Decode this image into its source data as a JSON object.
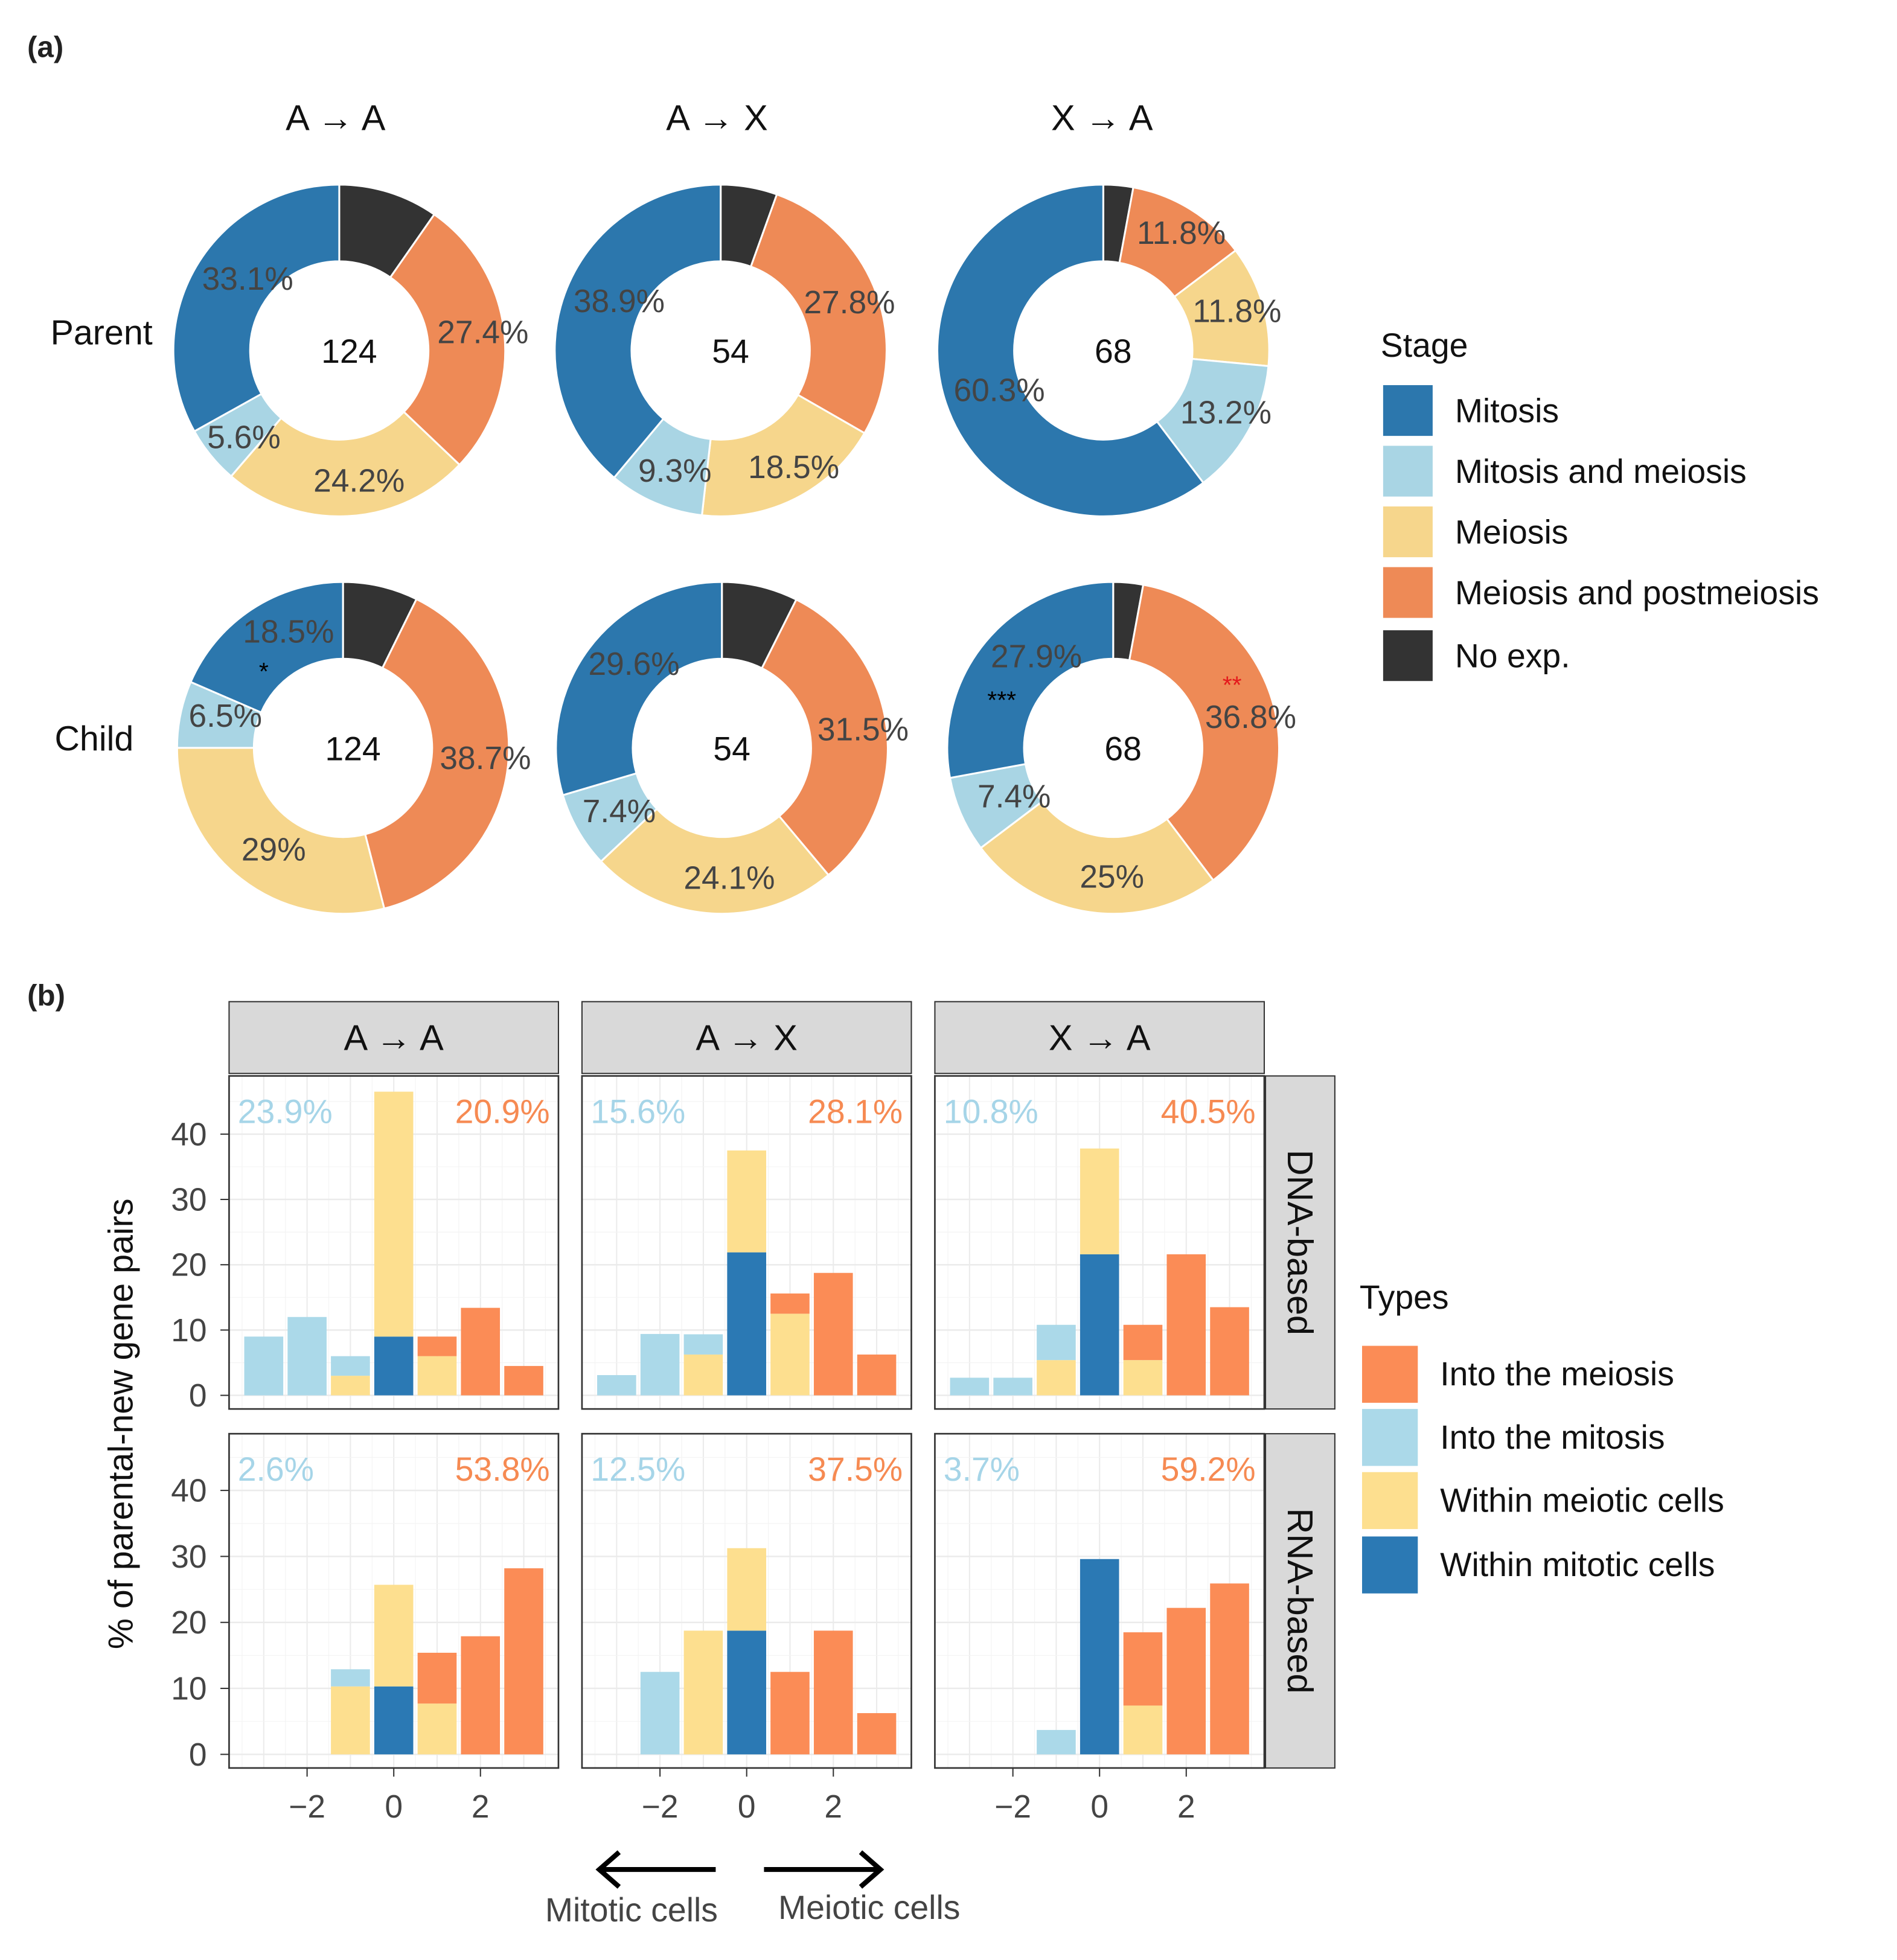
{
  "panel_labels": {
    "a": "(a)",
    "b": "(b)"
  },
  "chart_data": [
    {
      "type": "pie",
      "variant": "donut",
      "columns": [
        "A → A",
        "A → X",
        "X → A"
      ],
      "rows": [
        "Parent",
        "Child"
      ],
      "categories": [
        "No exp.",
        "Meiosis and postmeiosis",
        "Meiosis",
        "Mitosis and meiosis",
        "Mitosis"
      ],
      "colors": {
        "Mitosis": "#2c77ad",
        "Mitosis and meiosis": "#a9d5e4",
        "Meiosis": "#f6d68c",
        "Meiosis and postmeiosis": "#ee8a56",
        "No exp.": "#333333"
      },
      "donuts": [
        {
          "row": "Parent",
          "column": "A → A",
          "total": "124",
          "values": [
            9.7,
            27.4,
            24.2,
            5.6,
            33.1
          ],
          "labels": [
            "",
            "27.4%",
            "24.2%",
            "5.6%",
            "33.1%"
          ],
          "stars": []
        },
        {
          "row": "Parent",
          "column": "A → X",
          "total": "54",
          "values": [
            5.5,
            27.8,
            18.5,
            9.3,
            38.9
          ],
          "labels": [
            "",
            "27.8%",
            "18.5%",
            "9.3%",
            "38.9%"
          ],
          "stars": []
        },
        {
          "row": "Parent",
          "column": "X → A",
          "total": "68",
          "values": [
            2.9,
            11.8,
            11.8,
            13.2,
            60.3
          ],
          "labels": [
            "",
            "11.8%",
            "11.8%",
            "13.2%",
            "60.3%"
          ],
          "stars": []
        },
        {
          "row": "Child",
          "column": "A → A",
          "total": "124",
          "values": [
            7.3,
            38.7,
            29,
            6.5,
            18.5
          ],
          "labels": [
            "",
            "38.7%",
            "29%",
            "6.5%",
            "18.5%"
          ],
          "stars": [
            {
              "category": "Mitosis",
              "text": "*",
              "color": "#000000"
            }
          ]
        },
        {
          "row": "Child",
          "column": "A → X",
          "total": "54",
          "values": [
            7.4,
            31.5,
            24.1,
            7.4,
            29.6
          ],
          "labels": [
            "",
            "31.5%",
            "24.1%",
            "7.4%",
            "29.6%"
          ],
          "stars": []
        },
        {
          "row": "Child",
          "column": "X → A",
          "total": "68",
          "values": [
            2.9,
            36.8,
            25,
            7.4,
            27.9
          ],
          "labels": [
            "",
            "36.8%",
            "25%",
            "7.4%",
            "27.9%"
          ],
          "stars": [
            {
              "category": "Mitosis",
              "text": "***",
              "color": "#000000"
            },
            {
              "category": "Meiosis and postmeiosis",
              "text": "**",
              "color": "#e41a1c"
            }
          ]
        }
      ],
      "legend": {
        "title": "Stage",
        "items": [
          "Mitosis",
          "Mitosis and meiosis",
          "Meiosis",
          "Meiosis and postmeiosis",
          "No exp."
        ],
        "position": "right"
      }
    },
    {
      "type": "bar",
      "stacked": true,
      "facet_columns": [
        "A → A",
        "A → X",
        "X → A"
      ],
      "facet_rows": [
        "DNA-based",
        "RNA-based"
      ],
      "x": [
        -3,
        -2,
        -1,
        0,
        1,
        2,
        3
      ],
      "xticks": [
        "−2",
        "0",
        "2"
      ],
      "xtick_values": [
        -2,
        0,
        2
      ],
      "ylabel": "% of parental-new gene pairs",
      "ylim": [
        0,
        48
      ],
      "yticks": [
        "0",
        "10",
        "20",
        "30",
        "40"
      ],
      "grid": true,
      "series_names": [
        "Within mitotic cells",
        "Within meiotic cells",
        "Into the mitosis",
        "Into the meiosis"
      ],
      "colors": {
        "Into the meiosis": "#fb8c56",
        "Into the mitosis": "#abd9e9",
        "Within meiotic cells": "#fddf8f",
        "Within mitotic cells": "#2b79b4"
      },
      "annotation_colors": {
        "left": "#a6d5e8",
        "right": "#f68a52"
      },
      "panels": [
        {
          "row": "DNA-based",
          "column": "A → A",
          "left_pct": "23.9%",
          "right_pct": "20.9%",
          "series": {
            "Within mitotic cells": [
              0,
              0,
              0,
              9,
              0,
              0,
              0
            ],
            "Within meiotic cells": [
              0,
              0,
              3,
              37.5,
              6,
              0,
              0
            ],
            "Into the mitosis": [
              9,
              12,
              3,
              0,
              0,
              0,
              0
            ],
            "Into the meiosis": [
              0,
              0,
              0,
              0,
              3,
              13.4,
              4.5
            ]
          }
        },
        {
          "row": "DNA-based",
          "column": "A → X",
          "left_pct": "15.6%",
          "right_pct": "28.1%",
          "series": {
            "Within mitotic cells": [
              0,
              0,
              0,
              21.9,
              0,
              0,
              0
            ],
            "Within meiotic cells": [
              0,
              0,
              6.25,
              15.6,
              12.5,
              0,
              0
            ],
            "Into the mitosis": [
              3.1,
              9.4,
              3.1,
              0,
              0,
              0,
              0
            ],
            "Into the meiosis": [
              0,
              0,
              0,
              0,
              3.1,
              18.75,
              6.25
            ]
          }
        },
        {
          "row": "DNA-based",
          "column": "X → A",
          "left_pct": "10.8%",
          "right_pct": "40.5%",
          "series": {
            "Within mitotic cells": [
              0,
              0,
              0,
              21.6,
              0,
              0,
              0
            ],
            "Within meiotic cells": [
              0,
              0,
              5.4,
              16.2,
              5.4,
              0,
              0
            ],
            "Into the mitosis": [
              2.7,
              2.7,
              5.4,
              0,
              0,
              0,
              0
            ],
            "Into the meiosis": [
              0,
              0,
              0,
              0,
              5.4,
              21.6,
              13.5
            ]
          }
        },
        {
          "row": "RNA-based",
          "column": "A → A",
          "left_pct": "2.6%",
          "right_pct": "53.8%",
          "series": {
            "Within mitotic cells": [
              0,
              0,
              0,
              10.3,
              0,
              0,
              0
            ],
            "Within meiotic cells": [
              0,
              0,
              10.3,
              15.4,
              7.7,
              0,
              0
            ],
            "Into the mitosis": [
              0,
              0,
              2.6,
              0,
              0,
              0,
              0
            ],
            "Into the meiosis": [
              0,
              0,
              0,
              0,
              7.7,
              17.9,
              28.2
            ]
          }
        },
        {
          "row": "RNA-based",
          "column": "A → X",
          "left_pct": "12.5%",
          "right_pct": "37.5%",
          "series": {
            "Within mitotic cells": [
              0,
              0,
              0,
              18.75,
              0,
              0,
              0
            ],
            "Within meiotic cells": [
              0,
              0,
              18.75,
              12.5,
              0,
              0,
              0
            ],
            "Into the mitosis": [
              0,
              12.5,
              0,
              0,
              0,
              0,
              0
            ],
            "Into the meiosis": [
              0,
              0,
              0,
              0,
              12.5,
              18.75,
              6.25
            ]
          }
        },
        {
          "row": "RNA-based",
          "column": "X → A",
          "left_pct": "3.7%",
          "right_pct": "59.2%",
          "series": {
            "Within mitotic cells": [
              0,
              0,
              0,
              29.6,
              0,
              0,
              0
            ],
            "Within meiotic cells": [
              0,
              0,
              0,
              0,
              7.4,
              0,
              0
            ],
            "Into the mitosis": [
              0,
              0,
              3.7,
              0,
              0,
              0,
              0
            ],
            "Into the meiosis": [
              0,
              0,
              0,
              0,
              11.1,
              22.2,
              25.9
            ]
          }
        }
      ],
      "legend": {
        "title": "Types",
        "items": [
          "Into the meiosis",
          "Into the mitosis",
          "Within meiotic cells",
          "Within mitotic cells"
        ],
        "position": "right"
      },
      "arrows": {
        "left": "Mitotic cells",
        "right": "Meiotic cells"
      }
    }
  ]
}
